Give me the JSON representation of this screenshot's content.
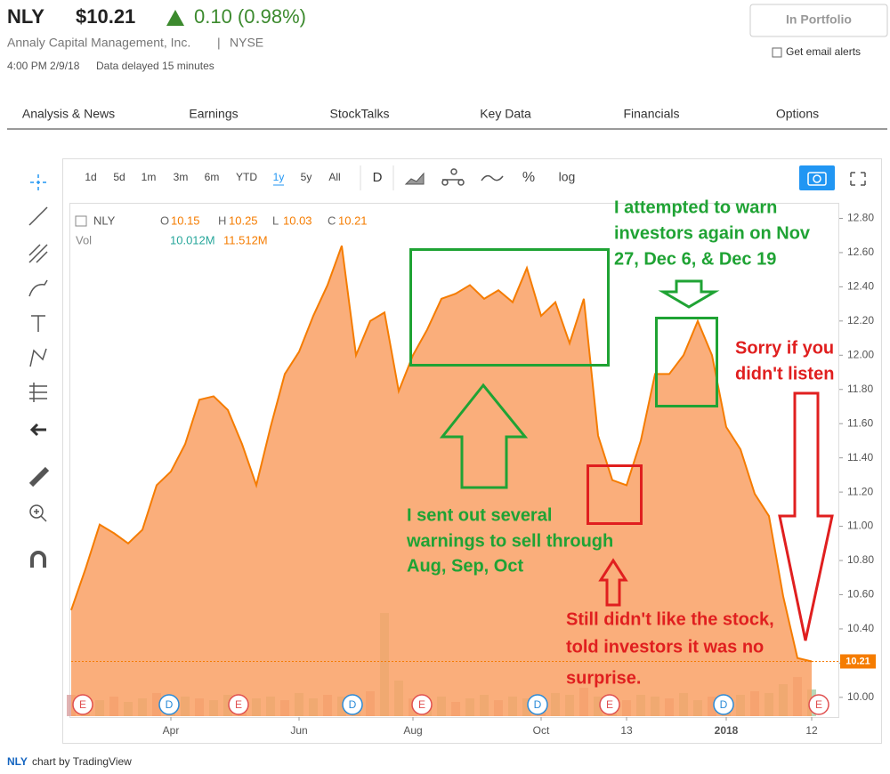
{
  "header": {
    "ticker": "NLY",
    "price": "$10.21",
    "change": "0.10 (0.98%)",
    "company": "Annaly Capital Management, Inc.",
    "separator": "|",
    "exchange": "NYSE",
    "time": "4:00 PM 2/9/18",
    "delay": "Data delayed 15 minutes",
    "portfolio_button": "In Portfolio",
    "email_alerts": "Get email alerts"
  },
  "tabs": [
    "Analysis & News",
    "Earnings",
    "StockTalks",
    "Key Data",
    "Financials",
    "Options"
  ],
  "toolbar": {
    "ranges": [
      "1d",
      "5d",
      "1m",
      "3m",
      "6m",
      "YTD",
      "1y",
      "5y",
      "All"
    ],
    "interval": "D",
    "percent": "%",
    "log": "log"
  },
  "legend": {
    "symbol": "NLY",
    "open_label": "O",
    "open": 10.15,
    "high_label": "H",
    "high": 10.25,
    "low_label": "L",
    "low": 10.03,
    "close_label": "C",
    "close": 10.21,
    "vol_label": "Vol",
    "vol_1": "10.012M",
    "vol_2": "11.512M"
  },
  "chart_data": {
    "type": "area",
    "color": "#f57c00",
    "categories": [
      null,
      null,
      null,
      null,
      null,
      null,
      null,
      "Apr",
      null,
      null,
      null,
      null,
      null,
      null,
      null,
      null,
      "Jun",
      null,
      null,
      null,
      null,
      null,
      null,
      null,
      "Aug",
      null,
      null,
      null,
      null,
      null,
      null,
      null,
      null,
      "Oct",
      null,
      null,
      null,
      null,
      null,
      "13",
      null,
      null,
      null,
      null,
      null,
      null,
      "2018",
      null,
      null,
      null,
      null,
      null,
      "12"
    ],
    "values": [
      10.51,
      10.75,
      11.01,
      10.96,
      10.9,
      10.98,
      11.24,
      11.32,
      11.48,
      11.74,
      11.76,
      11.68,
      11.48,
      11.24,
      11.58,
      11.89,
      12.02,
      12.23,
      12.41,
      12.64,
      12.0,
      12.2,
      12.25,
      11.79,
      12.0,
      12.15,
      12.33,
      12.36,
      12.41,
      12.33,
      12.38,
      12.31,
      12.51,
      12.23,
      12.31,
      12.07,
      12.33,
      11.53,
      11.27,
      11.24,
      11.5,
      11.89,
      11.89,
      12.0,
      12.2,
      12.0,
      11.58,
      11.45,
      11.19,
      11.06,
      10.59,
      10.23,
      10.21
    ],
    "ylim": [
      9.89,
      12.87
    ],
    "yticks": [
      {
        "value": 10.0,
        "label": "10.00"
      },
      {
        "value": 10.2,
        "label": "10.20"
      },
      {
        "value": 10.4,
        "label": "10.40"
      },
      {
        "value": 10.6,
        "label": "10.60"
      },
      {
        "value": 10.8,
        "label": "10.80"
      },
      {
        "value": 11.0,
        "label": "11.00"
      },
      {
        "value": 11.2,
        "label": "11.20"
      },
      {
        "value": 11.4,
        "label": "11.40"
      },
      {
        "value": 11.6,
        "label": "11.60"
      },
      {
        "value": 11.8,
        "label": "11.80"
      },
      {
        "value": 12.0,
        "label": "12.00"
      },
      {
        "value": 12.2,
        "label": "12.20"
      },
      {
        "value": 12.4,
        "label": "12.40"
      },
      {
        "value": 12.6,
        "label": "12.60"
      },
      {
        "value": 12.8,
        "label": "12.80"
      }
    ],
    "volume": {
      "values": [
        12,
        10,
        9,
        11,
        8,
        10,
        13,
        9,
        11,
        10,
        9,
        12,
        8,
        10,
        11,
        9,
        13,
        10,
        12,
        11,
        9,
        14,
        58,
        20,
        10,
        9,
        11,
        8,
        10,
        12,
        9,
        11,
        10,
        9,
        13,
        12,
        16,
        11,
        10,
        9,
        12,
        11,
        10,
        13,
        9,
        11,
        10,
        12,
        14,
        13,
        18,
        22,
        15
      ],
      "ylim": [
        0,
        120
      ]
    },
    "events": [
      "E",
      "D",
      "E",
      "D",
      "E",
      "D",
      "E",
      "D",
      "E"
    ]
  },
  "annotations": {
    "green_top": [
      "I attempted to warn",
      "investors again on Nov",
      "27, Dec 6, & Dec 19"
    ],
    "green_middle": [
      "I sent out several",
      "warnings to sell through",
      "Aug, Sep, Oct"
    ],
    "red_right": [
      "Sorry if you",
      "didn't listen"
    ],
    "red_bottom": [
      "Still didn't like the stock,",
      "told investors it was no",
      "surprise."
    ]
  },
  "footer": {
    "symbol": "NLY",
    "text": "chart by TradingView"
  }
}
